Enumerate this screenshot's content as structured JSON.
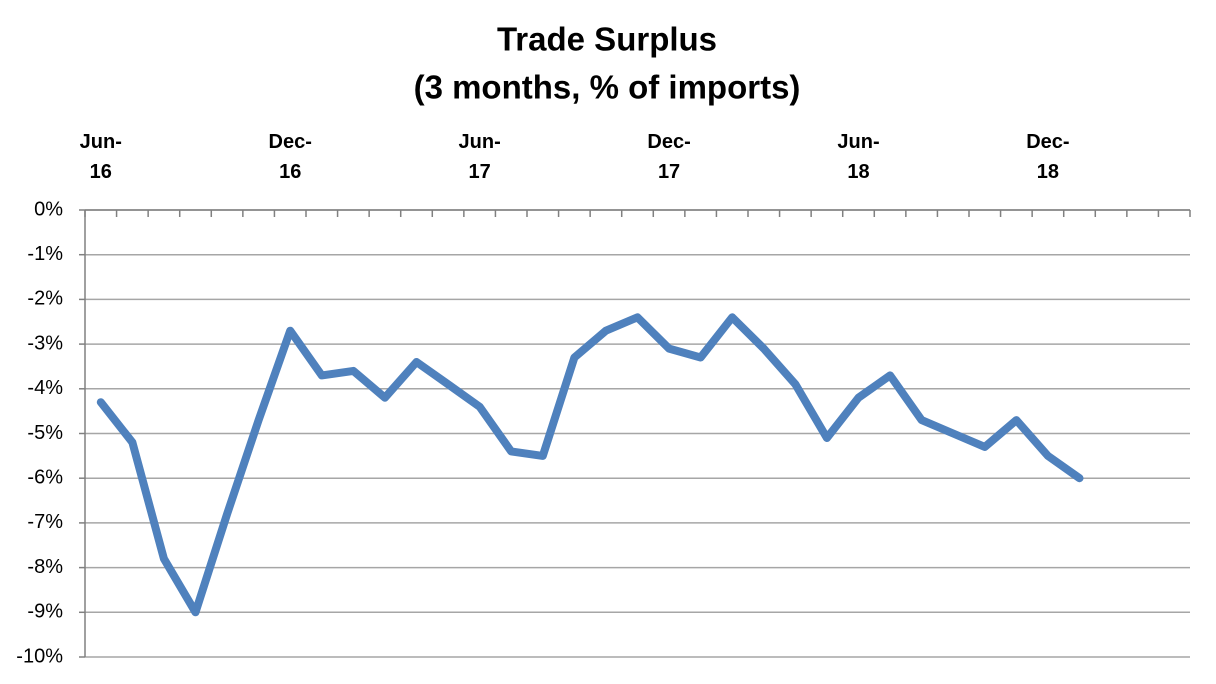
{
  "chart_data": {
    "type": "line",
    "title": "Trade Surplus",
    "subtitle": "(3 months, % of imports)",
    "categories": [
      "Jun-16",
      null,
      null,
      null,
      null,
      null,
      "Dec-16",
      null,
      null,
      null,
      null,
      null,
      "Jun-17",
      null,
      null,
      null,
      null,
      null,
      "Dec-17",
      null,
      null,
      null,
      null,
      null,
      "Jun-18",
      null,
      null,
      null,
      null,
      null,
      "Dec-18",
      null,
      null,
      null,
      null
    ],
    "series": [
      {
        "name": "Trade Surplus",
        "color": "#4f81bd",
        "values": [
          -4.3,
          -5.2,
          -7.8,
          -9.0,
          -6.8,
          -4.7,
          -2.7,
          -3.7,
          -3.6,
          -4.2,
          -3.4,
          -3.9,
          -4.4,
          -5.4,
          -5.5,
          -3.3,
          -2.7,
          -2.4,
          -3.1,
          -3.3,
          -2.4,
          -3.1,
          -3.9,
          -5.1,
          -4.2,
          -3.7,
          -4.7,
          -5.0,
          -5.3,
          -4.7,
          -5.5,
          -6.0,
          null,
          null,
          null
        ]
      }
    ],
    "ylim": [
      -10,
      0
    ],
    "yticks": [
      {
        "value": 0,
        "label": "0%"
      },
      {
        "value": -1,
        "label": "-1%"
      },
      {
        "value": -2,
        "label": "-2%"
      },
      {
        "value": -3,
        "label": "-3%"
      },
      {
        "value": -4,
        "label": "-4%"
      },
      {
        "value": -5,
        "label": "-5%"
      },
      {
        "value": -6,
        "label": "-6%"
      },
      {
        "value": -7,
        "label": "-7%"
      },
      {
        "value": -8,
        "label": "-8%"
      },
      {
        "value": -9,
        "label": "-9%"
      },
      {
        "value": -10,
        "label": "-10%"
      }
    ],
    "grid": true
  }
}
